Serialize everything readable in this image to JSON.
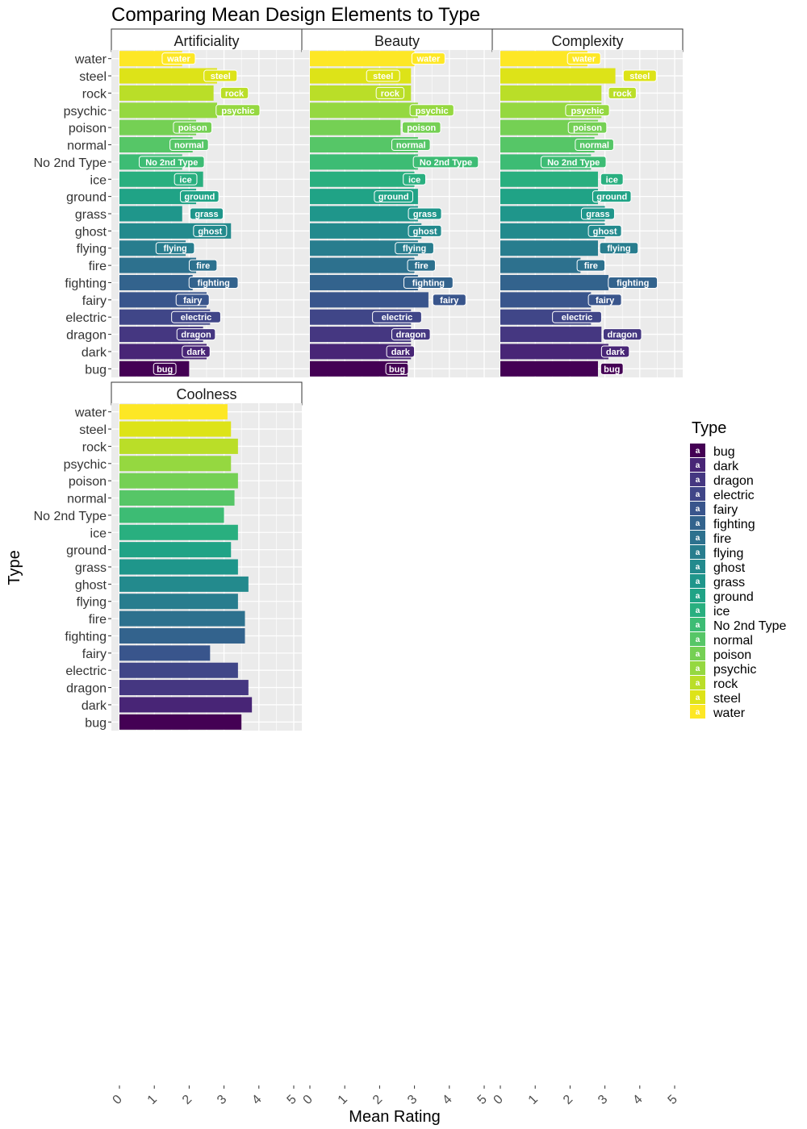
{
  "chart_data": {
    "type": "bar",
    "title": "Comparing Mean Design Elements to Type",
    "xlabel": "Mean Rating",
    "ylabel": "Type",
    "xlim": [
      0,
      5
    ],
    "xticks": [
      "0",
      "1",
      "2",
      "3",
      "4",
      "5"
    ],
    "categories": [
      "water",
      "steel",
      "rock",
      "psychic",
      "poison",
      "normal",
      "No 2nd Type",
      "ice",
      "ground",
      "grass",
      "ghost",
      "flying",
      "fire",
      "fighting",
      "fairy",
      "electric",
      "dragon",
      "dark",
      "bug"
    ],
    "legend": {
      "title": "Type",
      "placement": "right",
      "items": [
        "bug",
        "dark",
        "dragon",
        "electric",
        "fairy",
        "fighting",
        "fire",
        "flying",
        "ghost",
        "grass",
        "ground",
        "ice",
        "No 2nd Type",
        "normal",
        "poison",
        "psychic",
        "rock",
        "steel",
        "water"
      ],
      "key_glyph": "a"
    },
    "colors": {
      "water": "#FDE725",
      "steel": "#DDE318",
      "rock": "#BADE28",
      "psychic": "#95D840",
      "poison": "#75D054",
      "normal": "#56C667",
      "No 2nd Type": "#3DBC74",
      "ice": "#29AF7F",
      "ground": "#20A386",
      "grass": "#1F968B",
      "ghost": "#238A8D",
      "flying": "#287D8E",
      "fire": "#2D718E",
      "fighting": "#33638D",
      "fairy": "#39558C",
      "electric": "#404688",
      "dragon": "#453781",
      "dark": "#482576",
      "bug": "#440154"
    },
    "grid": true,
    "panels": [
      {
        "name": "Artificiality",
        "values": [
          1.8,
          2.8,
          2.7,
          2.8,
          2.2,
          2.1,
          1.8,
          2.4,
          2.2,
          1.8,
          3.2,
          1.9,
          2.2,
          2.1,
          2.5,
          2.6,
          2.4,
          2.5,
          2.0
        ],
        "labels": [
          1.7,
          2.9,
          3.3,
          3.4,
          2.1,
          2.0,
          1.5,
          1.9,
          2.3,
          2.5,
          2.6,
          1.6,
          2.4,
          2.7,
          2.1,
          2.2,
          2.2,
          2.2,
          1.3
        ]
      },
      {
        "name": "Beauty",
        "values": [
          3.0,
          2.9,
          2.9,
          3.1,
          2.6,
          3.1,
          3.1,
          3.0,
          3.1,
          3.1,
          3.2,
          3.1,
          3.0,
          3.1,
          3.4,
          2.9,
          2.9,
          2.9,
          2.8
        ],
        "labels": [
          3.4,
          2.1,
          2.3,
          3.5,
          3.2,
          2.9,
          3.9,
          3.0,
          2.4,
          3.3,
          3.3,
          3.0,
          3.2,
          3.4,
          4.0,
          2.5,
          2.9,
          2.6,
          2.5
        ]
      },
      {
        "name": "Complexity",
        "values": [
          2.5,
          3.3,
          2.9,
          2.9,
          2.8,
          2.7,
          2.6,
          2.8,
          2.8,
          3.0,
          3.0,
          2.8,
          2.3,
          3.1,
          2.6,
          2.6,
          2.9,
          3.1,
          2.8
        ],
        "labels": [
          2.4,
          4.0,
          3.5,
          2.5,
          2.5,
          2.7,
          2.1,
          3.2,
          3.2,
          2.8,
          3.0,
          3.4,
          2.6,
          3.8,
          3.0,
          2.2,
          3.5,
          3.3,
          3.2
        ]
      },
      {
        "name": "Coolness",
        "values": [
          3.1,
          3.2,
          3.4,
          3.2,
          3.4,
          3.3,
          3.0,
          3.4,
          3.2,
          3.4,
          3.7,
          3.4,
          3.6,
          3.6,
          2.6,
          3.4,
          3.7,
          3.8,
          3.5
        ]
      }
    ]
  }
}
